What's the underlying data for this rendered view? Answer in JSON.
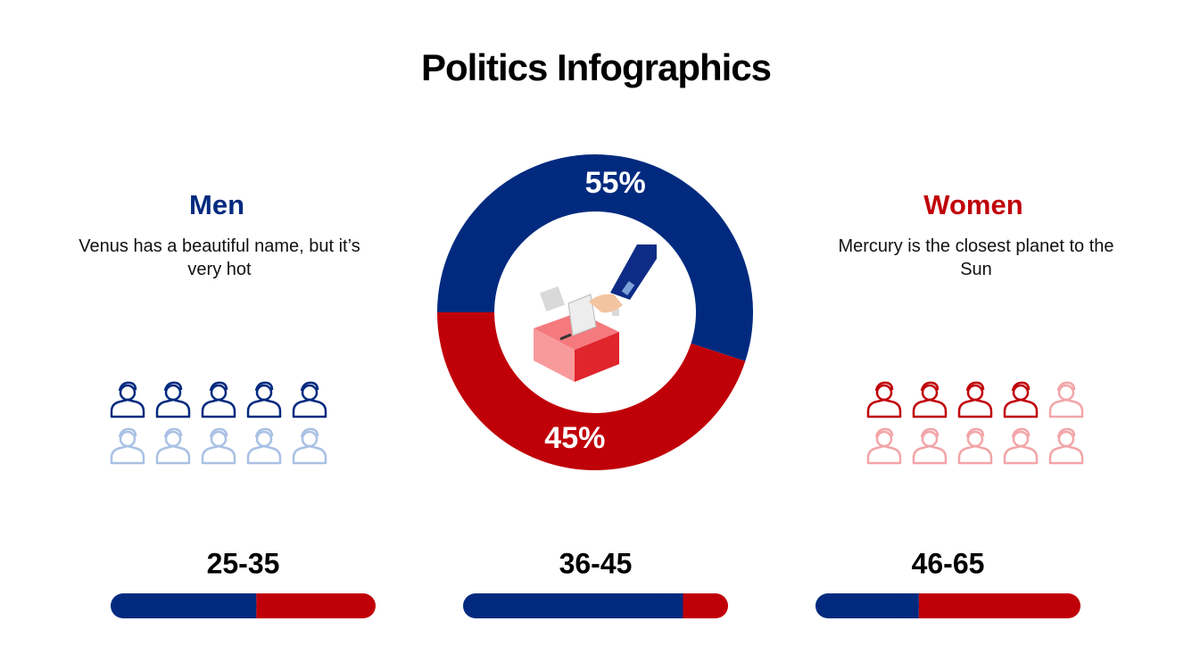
{
  "title": "Politics Infographics",
  "men": {
    "heading": "Men",
    "text": "Venus has a beautiful name, but it’s very hot",
    "highlighted": 5,
    "total": 10,
    "color": "#012a7f",
    "light_color": "#a9c1e4"
  },
  "women": {
    "heading": "Women",
    "text": "Mercury is the closest planet to the Sun",
    "highlighted": 4,
    "total": 10,
    "color": "#c00008",
    "light_color": "#f2a5a8"
  },
  "chart_data": [
    {
      "type": "pie",
      "values": [
        55,
        45
      ],
      "value_labels": [
        "55%",
        "45%"
      ],
      "colors": [
        "#012a7f",
        "#c00008"
      ]
    },
    {
      "type": "stacked_bar",
      "title": "25-35",
      "values": [
        55,
        45
      ],
      "colors": [
        "#012a7f",
        "#c00008"
      ]
    },
    {
      "type": "stacked_bar",
      "title": "36-45",
      "values": [
        83,
        17
      ],
      "colors": [
        "#012a7f",
        "#c00008"
      ]
    },
    {
      "type": "stacked_bar",
      "title": "46-65",
      "values": [
        39,
        61
      ],
      "colors": [
        "#012a7f",
        "#c00008"
      ]
    }
  ]
}
